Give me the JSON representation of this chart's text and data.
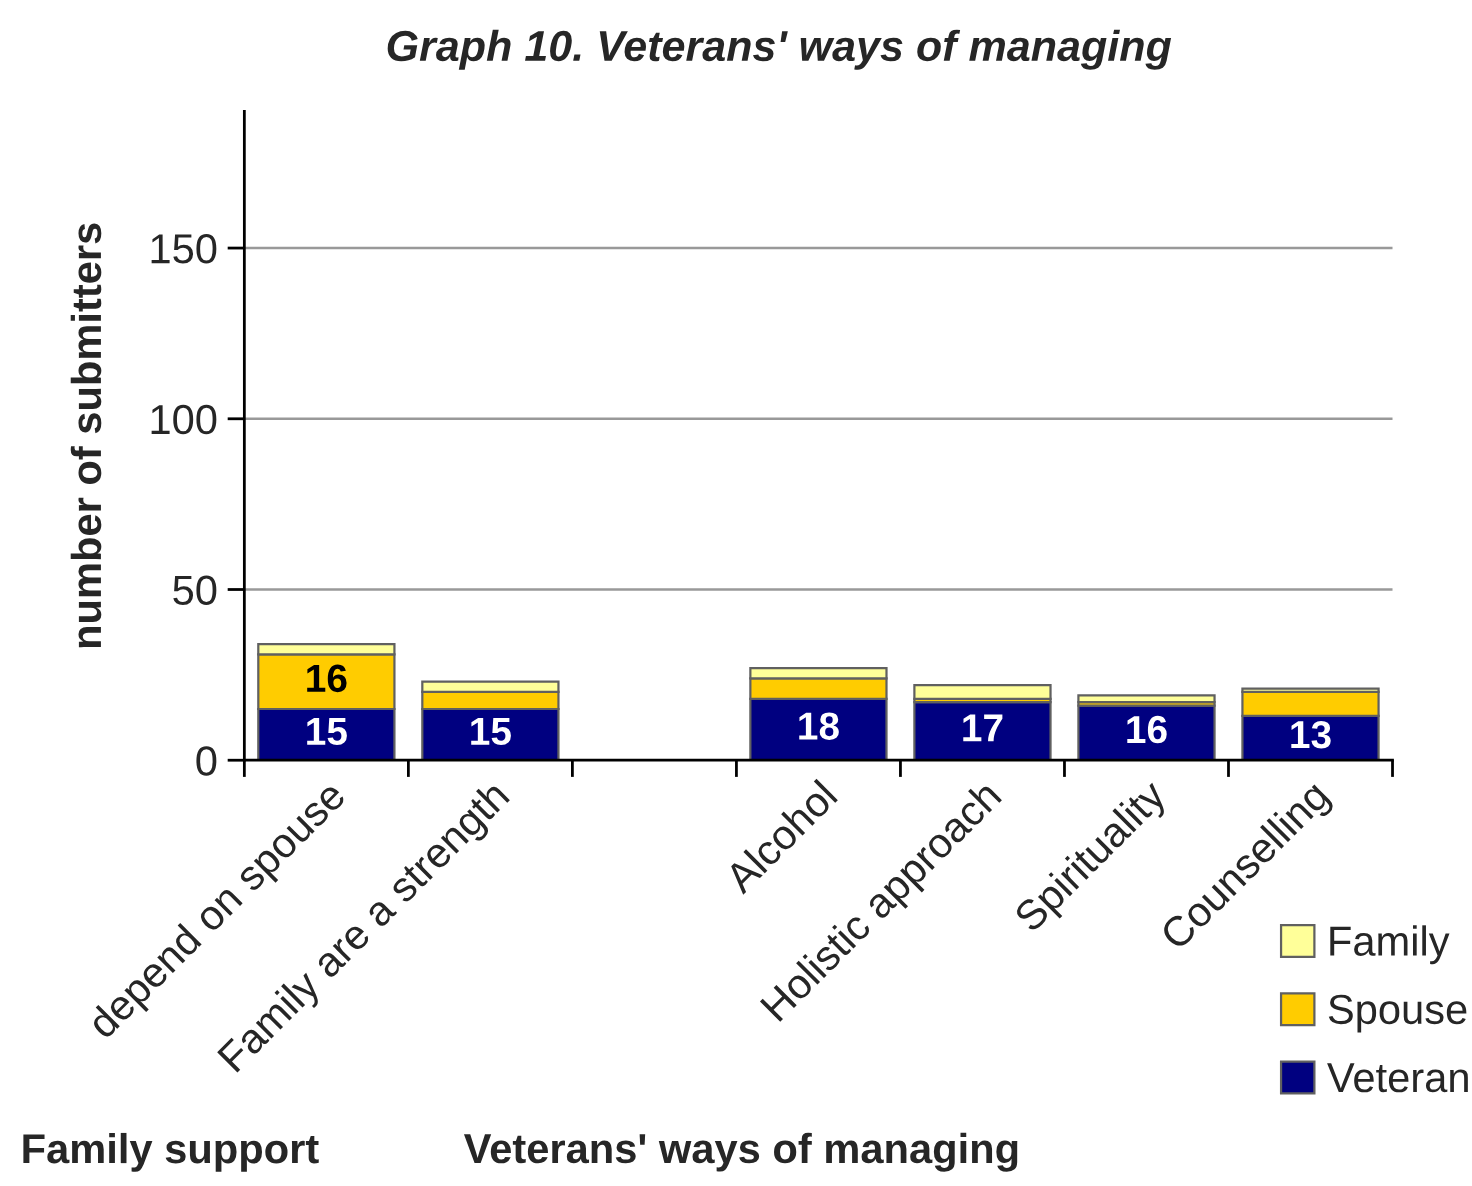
{
  "chart_data": {
    "type": "bar",
    "title": "Graph 10. Veterans' ways of managing",
    "ylabel": "number of submitters",
    "categories": [
      "depend on spouse",
      "Family are a strength",
      null,
      "Alcohol",
      "Holistic approach",
      "Spirituality",
      "Counselling"
    ],
    "stacked": true,
    "series": [
      {
        "name": "Veteran",
        "color": "#000080",
        "values": [
          15,
          15,
          null,
          18,
          17,
          16,
          13
        ],
        "value_labels": [
          "15",
          "15",
          null,
          "18",
          "17",
          "16",
          "13"
        ]
      },
      {
        "name": "Spouse",
        "color": "#ffcc00",
        "values": [
          16,
          5,
          null,
          6,
          1,
          1,
          7
        ],
        "value_labels": [
          "16",
          null,
          null,
          null,
          null,
          null,
          null
        ]
      },
      {
        "name": "Family",
        "color": "#ffff99",
        "values": [
          3,
          3,
          null,
          3,
          4,
          2,
          1
        ]
      }
    ],
    "ylim": [
      0,
      190
    ],
    "yticks": [
      0,
      50,
      100,
      150
    ],
    "grid": "y",
    "legend": "bottom right",
    "annotations": [
      "Family support",
      "Veterans' ways of managing"
    ]
  }
}
